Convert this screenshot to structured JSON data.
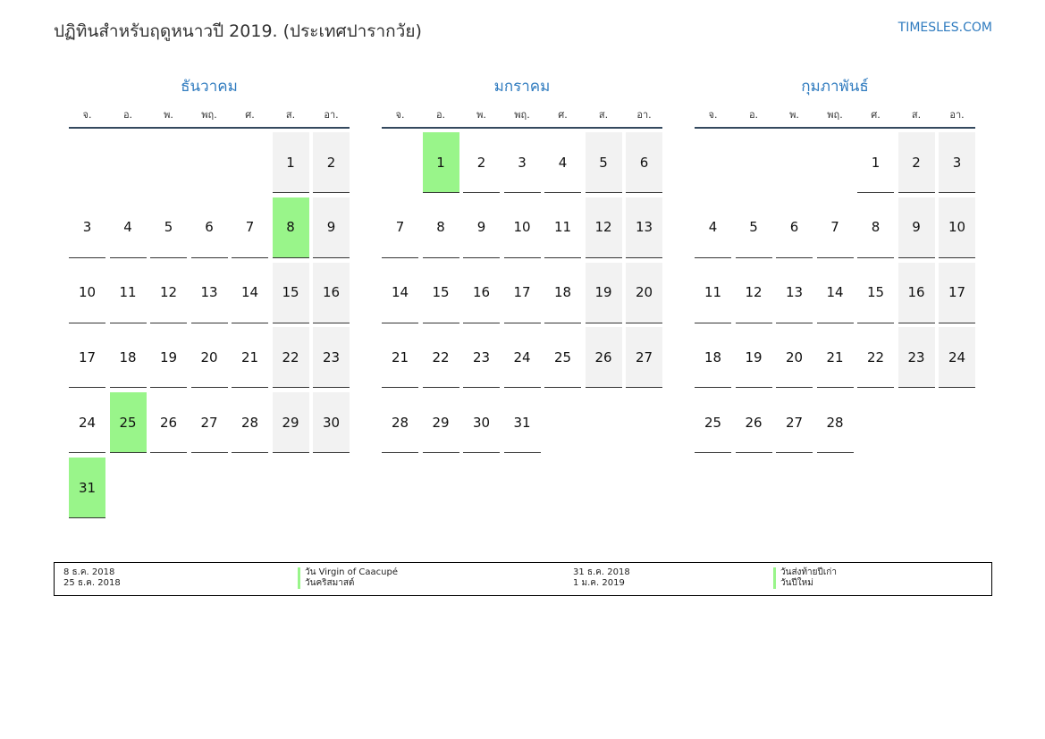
{
  "header": {
    "title": "ปฏิทินสำหรับฤดูหนาวปี 2019. (ประเทศปารากวัย)",
    "site": "TIMESLES.COM"
  },
  "weekdays": [
    "จ.",
    "อ.",
    "พ.",
    "พฤ.",
    "ศ.",
    "ส.",
    "อา."
  ],
  "months": [
    {
      "name": "ธันวาคม",
      "holidays": [
        8,
        25,
        31
      ],
      "weeks": [
        [
          null,
          null,
          null,
          null,
          null,
          1,
          2
        ],
        [
          3,
          4,
          5,
          6,
          7,
          8,
          9
        ],
        [
          10,
          11,
          12,
          13,
          14,
          15,
          16
        ],
        [
          17,
          18,
          19,
          20,
          21,
          22,
          23
        ],
        [
          24,
          25,
          26,
          27,
          28,
          29,
          30
        ],
        [
          31,
          null,
          null,
          null,
          null,
          null,
          null
        ]
      ]
    },
    {
      "name": "มกราคม",
      "holidays": [
        1
      ],
      "weeks": [
        [
          null,
          1,
          2,
          3,
          4,
          5,
          6
        ],
        [
          7,
          8,
          9,
          10,
          11,
          12,
          13
        ],
        [
          14,
          15,
          16,
          17,
          18,
          19,
          20
        ],
        [
          21,
          22,
          23,
          24,
          25,
          26,
          27
        ],
        [
          28,
          29,
          30,
          31,
          null,
          null,
          null
        ]
      ]
    },
    {
      "name": "กุมภาพันธ์",
      "holidays": [],
      "weeks": [
        [
          null,
          null,
          null,
          null,
          1,
          2,
          3
        ],
        [
          4,
          5,
          6,
          7,
          8,
          9,
          10
        ],
        [
          11,
          12,
          13,
          14,
          15,
          16,
          17
        ],
        [
          18,
          19,
          20,
          21,
          22,
          23,
          24
        ],
        [
          25,
          26,
          27,
          28,
          null,
          null,
          null
        ]
      ]
    }
  ],
  "legend": {
    "rows": [
      [
        "8 ธ.ค. 2018",
        "วัน Virgin of Caacupé",
        "31 ธ.ค. 2018",
        "วันส่งท้ายปีเก่า"
      ],
      [
        "25 ธ.ค. 2018",
        "วันคริสมาสต์",
        "1 ม.ค. 2019",
        "วันปีใหม่"
      ]
    ]
  }
}
